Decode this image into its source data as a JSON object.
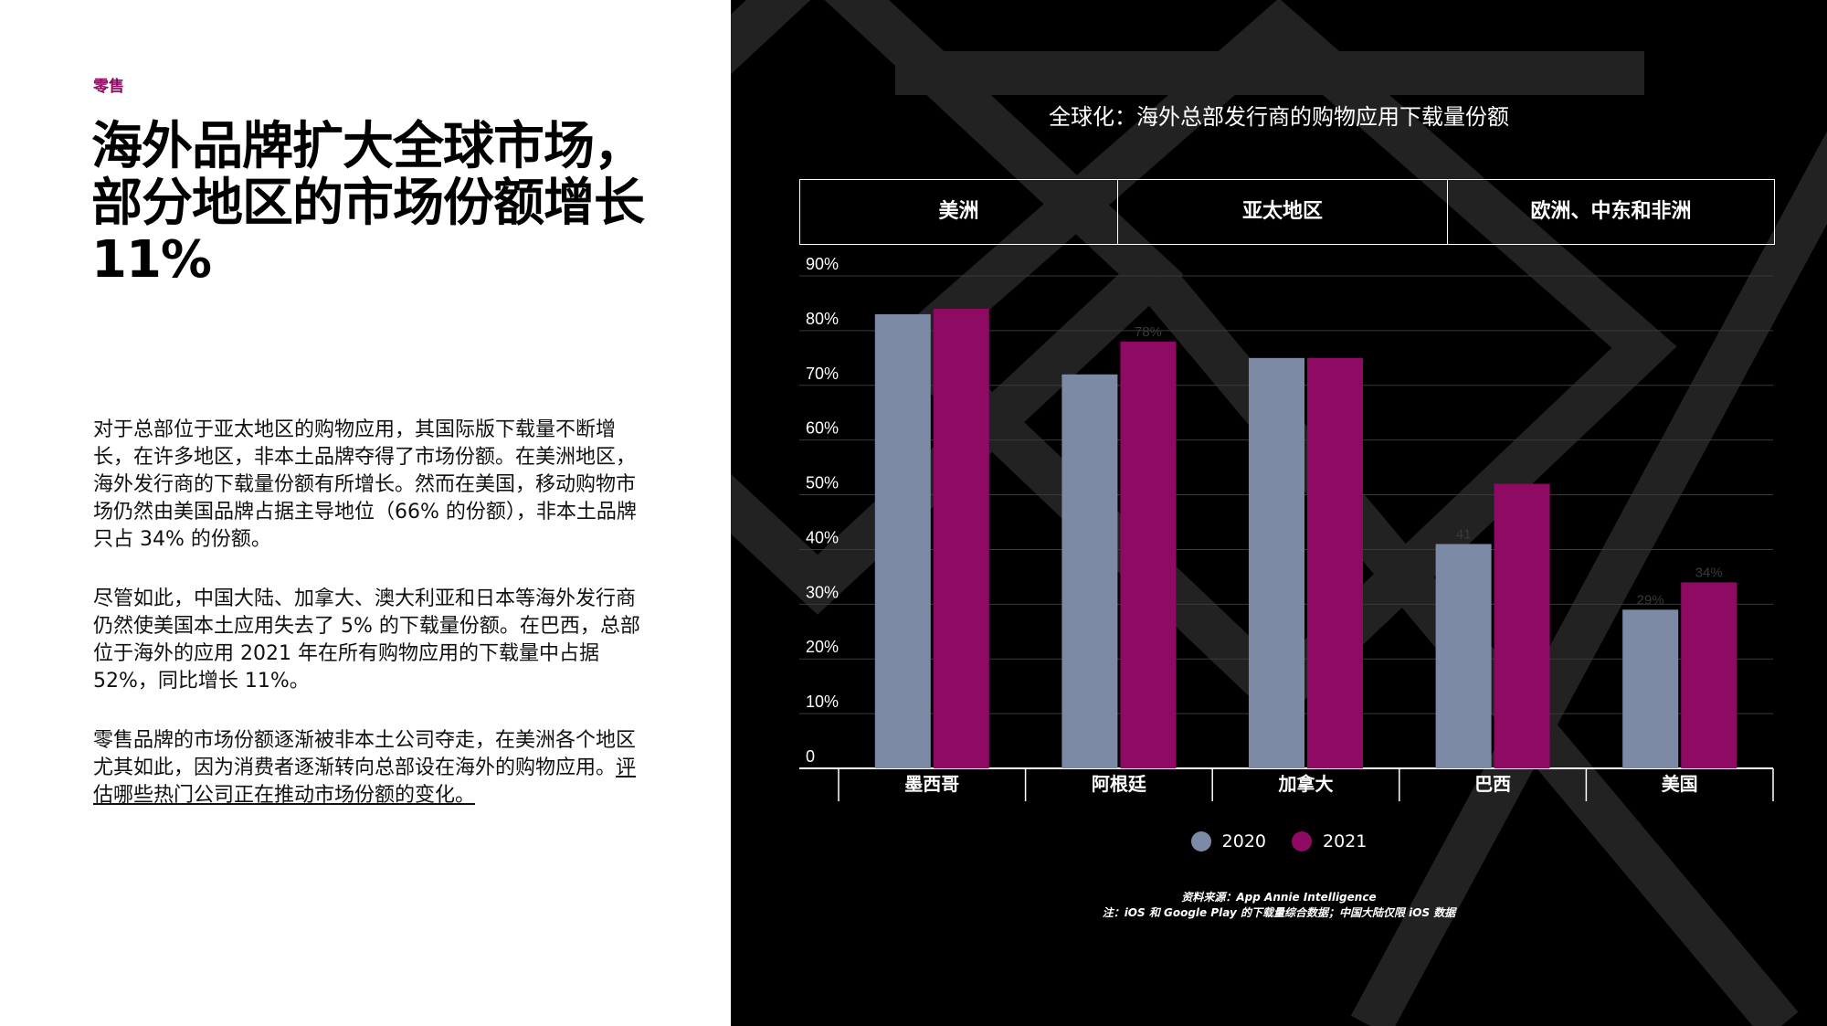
{
  "left": {
    "section_label": "零售",
    "headline": "海外品牌扩大全球市场，部分地区的市场份额增长 11%",
    "paragraphs": [
      "对于总部位于亚太地区的购物应用，其国际版下载量不断增长，在许多地区，非本土品牌夺得了市场份额。在美洲地区，海外发行商的下载量份额有所增长。然而在美国，移动购物市场仍然由美国品牌占据主导地位（66% 的份额），非本土品牌只占 34% 的份额。",
      "尽管如此，中国大陆、加拿大、澳大利亚和日本等海外发行商仍然使美国本土应用失去了 5% 的下载量份额。在巴西，总部位于海外的应用 2021 年在所有购物应用的下载量中占据 52%，同比增长 11%。"
    ],
    "paragraph3_text": "零售品牌的市场份额逐渐被非本土公司夺走，在美洲各个地区尤其如此，因为消费者逐渐转向总部设在海外的购物应用。",
    "paragraph3_link": "评估哪些热门公司正在推动市场份额的变化。"
  },
  "chart_data": {
    "type": "bar",
    "title": "全球化：海外总部发行商的购物应用下载量份额",
    "regions": [
      "美洲",
      "亚太地区",
      "欧洲、中东和非洲"
    ],
    "categories": [
      "墨西哥",
      "阿根廷",
      "加拿大",
      "巴西",
      "美国"
    ],
    "series": [
      {
        "name": "2020",
        "values": [
          83,
          72,
          75,
          41,
          29
        ],
        "color": "#7d8aa5"
      },
      {
        "name": "2021",
        "values": [
          84,
          78,
          75,
          52,
          34
        ],
        "color": "#8e0a63"
      }
    ],
    "data_labels": {
      "2020": [
        "",
        "",
        "",
        "41",
        "29%"
      ],
      "2021": [
        "",
        "78%",
        "",
        "",
        "34%"
      ]
    },
    "ylim": [
      0,
      90
    ],
    "yticks": [
      "0",
      "10%",
      "20%",
      "30%",
      "40%",
      "50%",
      "60%",
      "70%",
      "80%",
      "90%"
    ],
    "grid": true,
    "legend": "bottom"
  },
  "notes": {
    "source": "资料来源：App Annie Intelligence",
    "note": "注：iOS 和 Google Play 的下载量综合数据；中国大陆仅限 iOS 数据"
  }
}
